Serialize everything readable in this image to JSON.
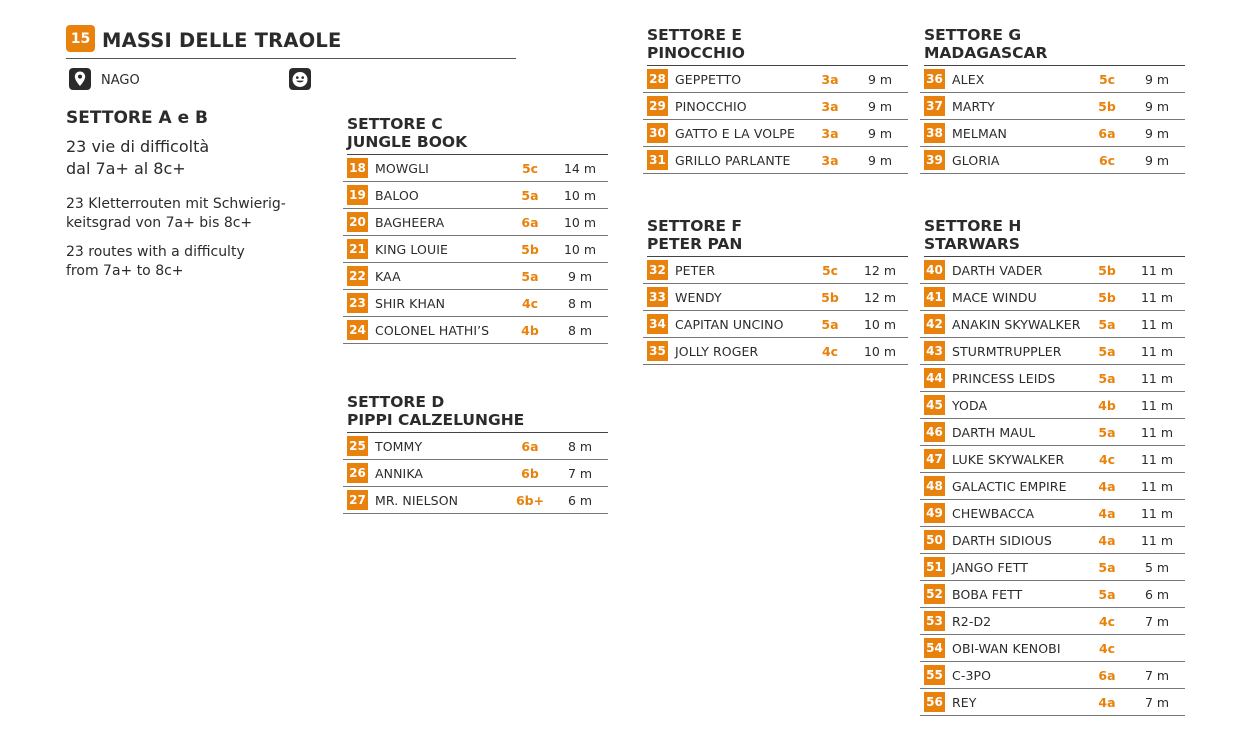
{
  "header": {
    "badge": "15",
    "title": "MASSI DELLE TRAOLE",
    "location": "NAGO",
    "location_icon": "map-pin-icon",
    "kids_icon": "smiley-icon",
    "accent_color": "#e8820c"
  },
  "intro": {
    "title": "SETTORE A e B",
    "it_line1": "23 vie di difficoltà",
    "it_line2": "dal 7a+ al 8c+",
    "de_line1": "23 Kletterrouten mit Schwierig-",
    "de_line2": "keitsgrad von 7a+ bis 8c+",
    "en_line1": "23 routes with a difficulty",
    "en_line2": "from 7a+ to 8c+"
  },
  "sectors": {
    "c": {
      "title1": "SETTORE C",
      "title2": "JUNGLE BOOK",
      "routes": [
        {
          "num": "18",
          "name": "MOWGLI",
          "grade": "5c",
          "len": "14 m"
        },
        {
          "num": "19",
          "name": "BALOO",
          "grade": "5a",
          "len": "10 m"
        },
        {
          "num": "20",
          "name": "BAGHEERA",
          "grade": "6a",
          "len": "10 m"
        },
        {
          "num": "21",
          "name": "KING LOUIE",
          "grade": "5b",
          "len": "10 m"
        },
        {
          "num": "22",
          "name": "KAA",
          "grade": "5a",
          "len": "9 m"
        },
        {
          "num": "23",
          "name": "SHIR KHAN",
          "grade": "4c",
          "len": "8 m"
        },
        {
          "num": "24",
          "name": "COLONEL HATHI’S",
          "grade": "4b",
          "len": "8 m"
        }
      ]
    },
    "d": {
      "title1": "SETTORE D",
      "title2": "PIPPI CALZELUNGHE",
      "routes": [
        {
          "num": "25",
          "name": "TOMMY",
          "grade": "6a",
          "len": "8 m"
        },
        {
          "num": "26",
          "name": "ANNIKA",
          "grade": "6b",
          "len": "7 m"
        },
        {
          "num": "27",
          "name": "MR. NIELSON",
          "grade": "6b+",
          "len": "6 m"
        }
      ]
    },
    "e": {
      "title1": "SETTORE E",
      "title2": "PINOCCHIO",
      "routes": [
        {
          "num": "28",
          "name": "GEPPETTO",
          "grade": "3a",
          "len": "9 m"
        },
        {
          "num": "29",
          "name": "PINOCCHIO",
          "grade": "3a",
          "len": "9 m"
        },
        {
          "num": "30",
          "name": "GATTO E LA VOLPE",
          "grade": "3a",
          "len": "9 m"
        },
        {
          "num": "31",
          "name": "GRILLO PARLANTE",
          "grade": "3a",
          "len": "9 m"
        }
      ]
    },
    "f": {
      "title1": "SETTORE F",
      "title2": "PETER PAN",
      "routes": [
        {
          "num": "32",
          "name": "PETER",
          "grade": "5c",
          "len": "12 m"
        },
        {
          "num": "33",
          "name": "WENDY",
          "grade": "5b",
          "len": "12 m"
        },
        {
          "num": "34",
          "name": "CAPITAN UNCINO",
          "grade": "5a",
          "len": "10 m"
        },
        {
          "num": "35",
          "name": "JOLLY ROGER",
          "grade": "4c",
          "len": "10 m"
        }
      ]
    },
    "g": {
      "title1": "SETTORE G",
      "title2": "MADAGASCAR",
      "routes": [
        {
          "num": "36",
          "name": "ALEX",
          "grade": "5c",
          "len": "9 m"
        },
        {
          "num": "37",
          "name": "MARTY",
          "grade": "5b",
          "len": "9 m"
        },
        {
          "num": "38",
          "name": "MELMAN",
          "grade": "6a",
          "len": "9 m"
        },
        {
          "num": "39",
          "name": "GLORIA",
          "grade": "6c",
          "len": "9 m"
        }
      ]
    },
    "h": {
      "title1": "SETTORE H",
      "title2": "STARWARS",
      "routes": [
        {
          "num": "40",
          "name": "DARTH VADER",
          "grade": "5b",
          "len": "11 m"
        },
        {
          "num": "41",
          "name": "MACE WINDU",
          "grade": "5b",
          "len": "11 m"
        },
        {
          "num": "42",
          "name": "ANAKIN SKYWALKER",
          "grade": "5a",
          "len": "11 m"
        },
        {
          "num": "43",
          "name": "STURMTRUPPLER",
          "grade": "5a",
          "len": "11 m"
        },
        {
          "num": "44",
          "name": "PRINCESS LEIDS",
          "grade": "5a",
          "len": "11 m"
        },
        {
          "num": "45",
          "name": "YODA",
          "grade": "4b",
          "len": "11 m"
        },
        {
          "num": "46",
          "name": "DARTH MAUL",
          "grade": "5a",
          "len": "11 m"
        },
        {
          "num": "47",
          "name": "LUKE SKYWALKER",
          "grade": "4c",
          "len": "11 m"
        },
        {
          "num": "48",
          "name": "GALACTIC EMPIRE",
          "grade": "4a",
          "len": "11 m"
        },
        {
          "num": "49",
          "name": "CHEWBACCA",
          "grade": "4a",
          "len": "11 m"
        },
        {
          "num": "50",
          "name": "DARTH SIDIOUS",
          "grade": "4a",
          "len": "11 m"
        },
        {
          "num": "51",
          "name": "JANGO FETT",
          "grade": "5a",
          "len": "5 m"
        },
        {
          "num": "52",
          "name": "BOBA FETT",
          "grade": "5a",
          "len": "6 m"
        },
        {
          "num": "53",
          "name": "R2-D2",
          "grade": "4c",
          "len": "7 m"
        },
        {
          "num": "54",
          "name": "OBI-WAN KENOBI",
          "grade": "4c",
          "len": ""
        },
        {
          "num": "55",
          "name": "C-3PO",
          "grade": "6a",
          "len": "7 m"
        },
        {
          "num": "56",
          "name": "REY",
          "grade": "4a",
          "len": "7 m"
        }
      ]
    }
  }
}
